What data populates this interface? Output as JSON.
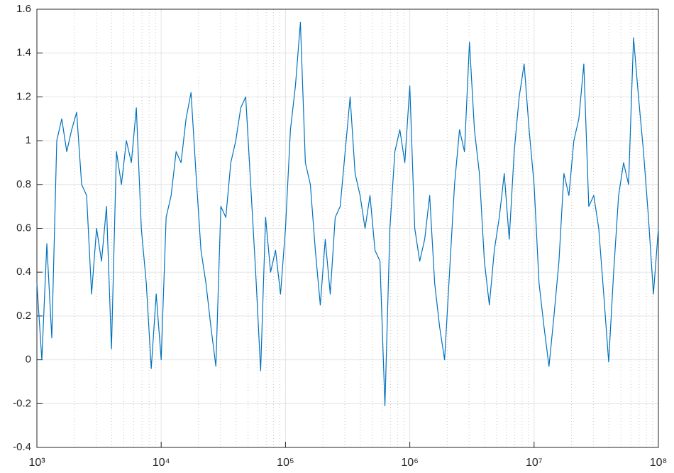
{
  "chart_data": {
    "type": "line",
    "x": [
      1000,
      1096,
      1202,
      1318,
      1445,
      1585,
      1738,
      1905,
      2089,
      2291,
      2512,
      2754,
      3020,
      3311,
      3631,
      3981,
      4365,
      4786,
      5248,
      5754,
      6310,
      6918,
      7586,
      8318,
      9120,
      10000,
      10960,
      12020,
      13180,
      14450,
      15850,
      17380,
      19050,
      20890,
      22910,
      25120,
      27540,
      30200,
      33110,
      36310,
      39810,
      43650,
      47860,
      52480,
      57540,
      63100,
      69180,
      75860,
      83180,
      91200,
      100000,
      109600,
      120200,
      131800,
      144500,
      158500,
      173800,
      190500,
      208900,
      229100,
      251200,
      275400,
      302000,
      331100,
      363100,
      398100,
      436500,
      478600,
      524800,
      575400,
      631000,
      691800,
      758600,
      831800,
      912000,
      1000000,
      1096000,
      1202000,
      1318000,
      1445000,
      1585000,
      1738000,
      1905000,
      2089000,
      2291000,
      2512000,
      2754000,
      3020000,
      3311000,
      3631000,
      3981000,
      4365000,
      4786000,
      5248000,
      5754000,
      6310000,
      6918000,
      7586000,
      8318000,
      9120000,
      10000000,
      10960000,
      12020000,
      13180000,
      14450000,
      15850000,
      17380000,
      19050000,
      20890000,
      22910000,
      25120000,
      27540000,
      30200000,
      33110000,
      36310000,
      39810000,
      43650000,
      47860000,
      52480000,
      57540000,
      63100000,
      69180000,
      75860000,
      83180000,
      91200000,
      100000000
    ],
    "series": [
      {
        "color": "#0072bd",
        "values": [
          0.35,
          0.0,
          0.53,
          0.1,
          1.0,
          1.1,
          0.95,
          1.05,
          1.13,
          0.8,
          0.75,
          0.3,
          0.6,
          0.45,
          0.7,
          0.05,
          0.95,
          0.8,
          1.0,
          0.9,
          1.15,
          0.6,
          0.35,
          -0.04,
          0.3,
          0.0,
          0.65,
          0.75,
          0.95,
          0.9,
          1.1,
          1.22,
          0.85,
          0.5,
          0.35,
          0.15,
          -0.03,
          0.7,
          0.65,
          0.9,
          1.0,
          1.15,
          1.2,
          0.8,
          0.4,
          -0.05,
          0.65,
          0.4,
          0.5,
          0.3,
          0.6,
          1.05,
          1.25,
          1.54,
          0.9,
          0.8,
          0.5,
          0.25,
          0.55,
          0.3,
          0.65,
          0.7,
          0.95,
          1.2,
          0.85,
          0.75,
          0.6,
          0.75,
          0.5,
          0.45,
          -0.21,
          0.6,
          0.95,
          1.05,
          0.9,
          1.25,
          0.6,
          0.45,
          0.55,
          0.75,
          0.35,
          0.15,
          0.0,
          0.4,
          0.8,
          1.05,
          0.95,
          1.45,
          1.05,
          0.85,
          0.45,
          0.25,
          0.5,
          0.65,
          0.85,
          0.55,
          0.95,
          1.2,
          1.35,
          1.05,
          0.8,
          0.35,
          0.15,
          -0.03,
          0.2,
          0.45,
          0.85,
          0.75,
          1.0,
          1.1,
          1.35,
          0.7,
          0.75,
          0.6,
          0.3,
          -0.01,
          0.4,
          0.75,
          0.9,
          0.8,
          1.47,
          1.2,
          0.95,
          0.65,
          0.3,
          0.6
        ]
      }
    ],
    "xlog": true,
    "xlim": [
      1000,
      100000000
    ],
    "xticks": [
      {
        "value": 1000,
        "label": "10³"
      },
      {
        "value": 10000,
        "label": "10⁴"
      },
      {
        "value": 100000,
        "label": "10⁵"
      },
      {
        "value": 1000000,
        "label": "10⁶"
      },
      {
        "value": 10000000,
        "label": "10⁷"
      },
      {
        "value": 100000000,
        "label": "10⁸"
      }
    ],
    "ylim": [
      -0.4,
      1.6
    ],
    "yticks": [
      -0.4,
      -0.2,
      0,
      0.2,
      0.4,
      0.6,
      0.8,
      1,
      1.2,
      1.4,
      1.6
    ],
    "grid": true,
    "minor_grid": true
  }
}
